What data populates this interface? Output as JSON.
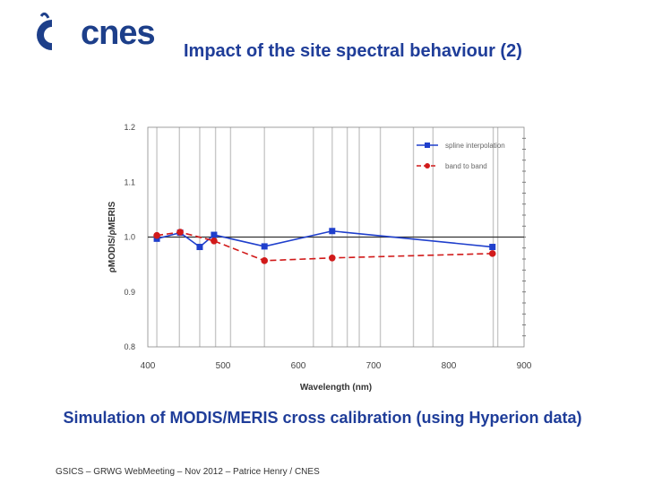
{
  "header": {
    "logo_text": "cnes",
    "title": "Impact of the site spectral behaviour (2)"
  },
  "caption": "Simulation of MODIS/MERIS cross calibration (using Hyperion data)",
  "footer": "GSICS – GRWG WebMeeting – Nov 2012 – Patrice Henry / CNES",
  "colors": {
    "title": "#1f3d99",
    "series_blue": "#1f3fcc",
    "series_red": "#d11a1a"
  },
  "chart_data": {
    "type": "line",
    "xlabel": "Wavelength (nm)",
    "ylabel": "ρMODIS/ρMERIS",
    "xlim": [
      400,
      900
    ],
    "ylim": [
      0.8,
      1.2
    ],
    "xticks": [
      400,
      500,
      600,
      700,
      800,
      900
    ],
    "yticks": [
      0.8,
      0.9,
      1.0,
      1.1,
      1.2
    ],
    "xtick_labels": [
      "400",
      "500",
      "600",
      "700",
      "800",
      "900"
    ],
    "ytick_labels": [
      "0.8",
      "0.9",
      "1.0",
      "1.1",
      "1.2"
    ],
    "reference_line": 1.0,
    "vertical_lines": [
      412,
      442,
      469,
      490,
      510,
      555,
      620,
      645,
      665,
      681,
      709,
      753,
      779,
      859,
      865
    ],
    "legend_position": "top-right",
    "series": [
      {
        "name": "spline interpolation",
        "color": "#1f3fcc",
        "style": "solid",
        "marker": "square",
        "x": [
          412,
          443,
          469,
          488,
          555,
          645,
          858
        ],
        "y": [
          0.997,
          1.008,
          0.982,
          1.004,
          0.983,
          1.011,
          0.982
        ]
      },
      {
        "name": "band to band",
        "color": "#d11a1a",
        "style": "dashed",
        "marker": "circle",
        "x": [
          412,
          443,
          488,
          555,
          645,
          858
        ],
        "y": [
          1.003,
          1.009,
          0.993,
          0.957,
          0.962,
          0.97
        ]
      }
    ]
  }
}
